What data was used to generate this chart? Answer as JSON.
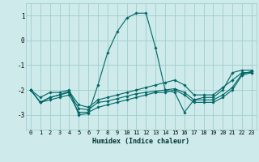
{
  "xlabel": "Humidex (Indice chaleur)",
  "ylabel": "",
  "background_color": "#ceeaea",
  "grid_color": "#9ecece",
  "line_color": "#006666",
  "xlim": [
    -0.5,
    23.5
  ],
  "ylim": [
    -3.6,
    1.5
  ],
  "yticks": [
    -3,
    -2,
    -1,
    0,
    1
  ],
  "xticks": [
    0,
    1,
    2,
    3,
    4,
    5,
    6,
    7,
    8,
    9,
    10,
    11,
    12,
    13,
    14,
    15,
    16,
    17,
    18,
    19,
    20,
    21,
    22,
    23
  ],
  "series": [
    {
      "x": [
        0,
        1,
        2,
        3,
        4,
        5,
        6,
        7,
        8,
        9,
        10,
        11,
        12,
        13,
        14,
        15,
        16,
        17,
        18,
        19,
        20,
        21,
        22,
        23
      ],
      "y": [
        -2.0,
        -2.3,
        -2.1,
        -2.1,
        -2.0,
        -3.0,
        -2.95,
        -1.8,
        -0.5,
        0.35,
        0.9,
        1.1,
        1.1,
        -0.3,
        -2.0,
        -2.1,
        -2.9,
        -2.4,
        -2.3,
        -2.3,
        -2.0,
        -1.3,
        -1.2,
        -1.2
      ]
    },
    {
      "x": [
        0,
        1,
        2,
        3,
        4,
        5,
        6,
        7,
        8,
        9,
        10,
        11,
        12,
        13,
        14,
        15,
        16,
        17,
        18,
        19,
        20,
        21,
        22,
        23
      ],
      "y": [
        -2.0,
        -2.5,
        -2.3,
        -2.2,
        -2.05,
        -2.6,
        -2.7,
        -2.4,
        -2.3,
        -2.2,
        -2.1,
        -2.0,
        -1.9,
        -1.8,
        -1.7,
        -1.6,
        -1.8,
        -2.2,
        -2.2,
        -2.2,
        -1.9,
        -1.6,
        -1.3,
        -1.3
      ]
    },
    {
      "x": [
        0,
        1,
        2,
        3,
        4,
        5,
        6,
        7,
        8,
        9,
        10,
        11,
        12,
        13,
        14,
        15,
        16,
        17,
        18,
        19,
        20,
        21,
        22,
        23
      ],
      "y": [
        -2.0,
        -2.5,
        -2.3,
        -2.2,
        -2.1,
        -2.75,
        -2.8,
        -2.5,
        -2.45,
        -2.35,
        -2.25,
        -2.15,
        -2.1,
        -2.05,
        -2.0,
        -1.95,
        -2.1,
        -2.4,
        -2.4,
        -2.4,
        -2.2,
        -1.9,
        -1.35,
        -1.25
      ]
    },
    {
      "x": [
        0,
        1,
        2,
        3,
        4,
        5,
        6,
        7,
        8,
        9,
        10,
        11,
        12,
        13,
        14,
        15,
        16,
        17,
        18,
        19,
        20,
        21,
        22,
        23
      ],
      "y": [
        -2.0,
        -2.5,
        -2.4,
        -2.3,
        -2.2,
        -2.9,
        -2.9,
        -2.7,
        -2.6,
        -2.5,
        -2.4,
        -2.3,
        -2.2,
        -2.1,
        -2.1,
        -2.0,
        -2.2,
        -2.5,
        -2.5,
        -2.5,
        -2.3,
        -2.0,
        -1.4,
        -1.3
      ]
    }
  ]
}
